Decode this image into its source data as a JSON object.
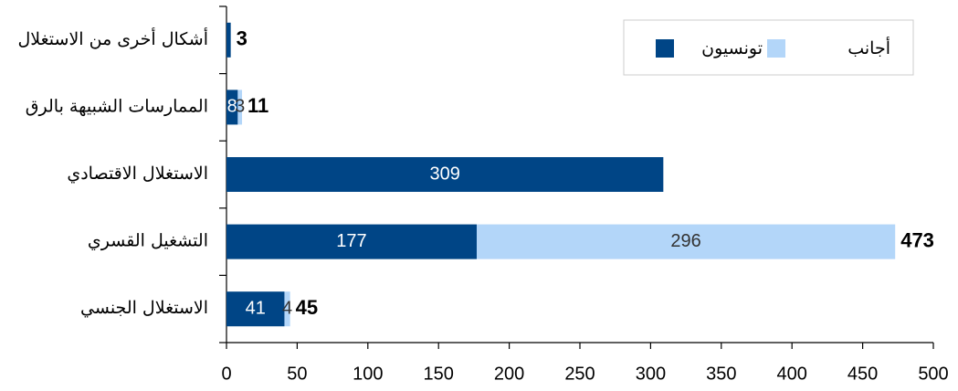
{
  "chart_data": {
    "type": "bar",
    "orientation": "horizontal",
    "stacked": true,
    "categories": [
      "أشكال أخرى من الاستغلال",
      "الممارسات الشبيهة بالرق",
      "الاستغلال الاقتصادي",
      "التشغيل القسري",
      "الاستغلال الجنسي"
    ],
    "series": [
      {
        "name": "تونسيون",
        "color": "#004586",
        "values": [
          3,
          8,
          309,
          177,
          41
        ],
        "value_labels": [
          null,
          "8",
          "309",
          "177",
          "41"
        ]
      },
      {
        "name": "أجانب",
        "color": "#b3d6f9",
        "values": [
          null,
          3,
          null,
          296,
          4
        ],
        "value_labels": [
          null,
          "3",
          null,
          "296",
          "4"
        ]
      }
    ],
    "totals": [
      3,
      11,
      null,
      473,
      45
    ],
    "xlim": [
      0,
      500
    ],
    "xticks": [
      0,
      50,
      100,
      150,
      200,
      250,
      300,
      350,
      400,
      450,
      500
    ],
    "legend": "top-right"
  }
}
